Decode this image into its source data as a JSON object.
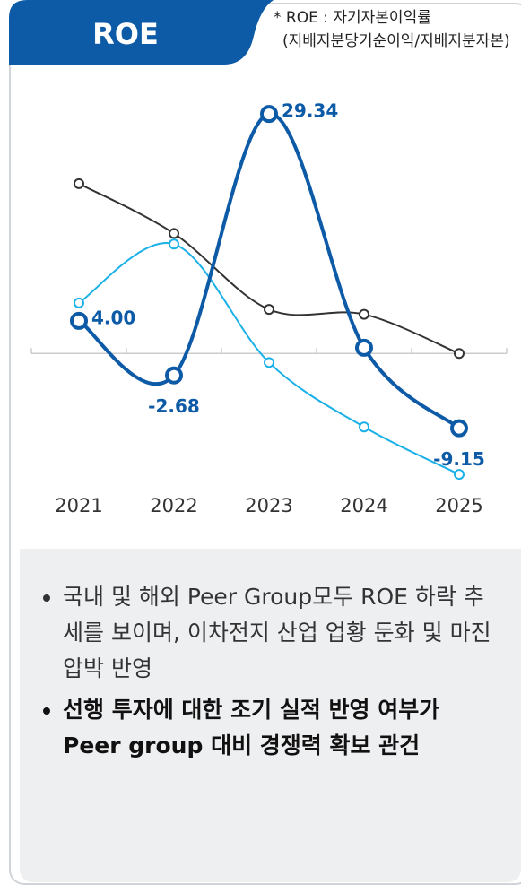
{
  "header": {
    "title": "ROE",
    "note": "* ROE : 자기자본이익률",
    "note_sub": "(지배지분당기순이익/지배지분자본)"
  },
  "chart_data": {
    "type": "line",
    "categories": [
      "2021",
      "2022",
      "2023",
      "2024",
      "2025"
    ],
    "ylim": [
      -16,
      31
    ],
    "series": [
      {
        "color": "#333333",
        "values": [
          20.8,
          14.7,
          5.4,
          4.8,
          0
        ]
      },
      {
        "color": "#1ab0e8",
        "values": [
          6.2,
          13.4,
          -1.1,
          -9.0,
          -14.8
        ]
      },
      {
        "color": "#0d5aa7",
        "values": [
          4.0,
          -2.68,
          29.34,
          0.7,
          -9.15
        ],
        "value_labels": [
          "4.00",
          "-2.68",
          "29.34",
          null,
          "-9.15"
        ]
      }
    ]
  },
  "notes": [
    "국내 및 해외 Peer Group모두 ROE 하락 추세를 보이며, 이차전지 산업 업황 둔화 및 마진 압박 반영",
    "선행 투자에 대한 조기 실적 반영 여부가 Peer group 대비 경쟁력 확보 관건"
  ]
}
